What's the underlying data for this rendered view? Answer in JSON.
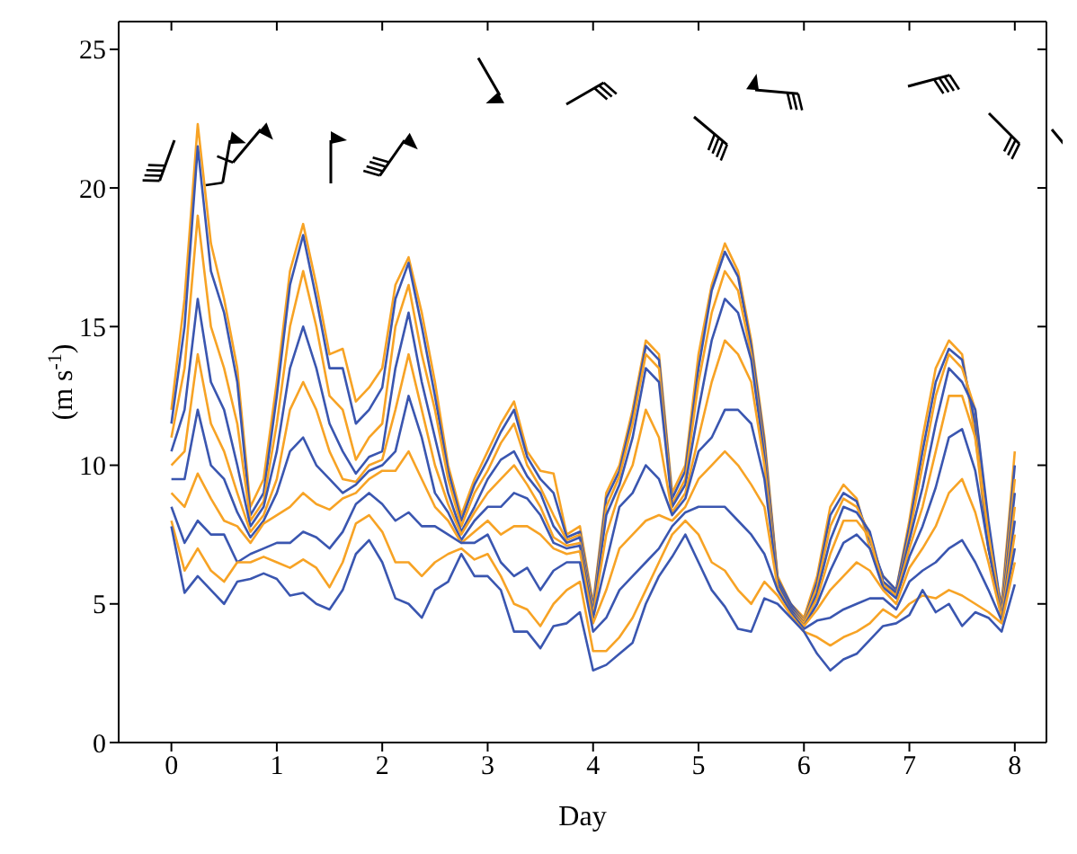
{
  "chart_data": {
    "type": "line",
    "xlabel": "Day",
    "ylabel": "(m s$^{-1}$)",
    "x": [
      0,
      0.125,
      0.25,
      0.375,
      0.5,
      0.625,
      0.75,
      0.875,
      1,
      1.125,
      1.25,
      1.375,
      1.5,
      1.625,
      1.75,
      1.875,
      2,
      2.125,
      2.25,
      2.375,
      2.5,
      2.625,
      2.75,
      2.875,
      3,
      3.125,
      3.25,
      3.375,
      3.5,
      3.625,
      3.75,
      3.875,
      4,
      4.125,
      4.25,
      4.375,
      4.5,
      4.625,
      4.75,
      4.875,
      5,
      5.125,
      5.25,
      5.375,
      5.5,
      5.625,
      5.75,
      5.875,
      6,
      6.125,
      6.25,
      6.375,
      6.5,
      6.625,
      6.75,
      6.875,
      7,
      7.125,
      7.25,
      7.375,
      7.5,
      7.625,
      7.75,
      7.875,
      8
    ],
    "series": [
      {
        "color": "#f7a325",
        "values": [
          12,
          16,
          22.3,
          18,
          16,
          13.5,
          8.5,
          9.5,
          13,
          17,
          18.7,
          16.5,
          14,
          14.2,
          12.3,
          12.8,
          13.5,
          16.5,
          17.5,
          15.5,
          13,
          10,
          8.2,
          9.5,
          10.5,
          11.5,
          12.3,
          10.5,
          9.8,
          9.7,
          7.5,
          7.8,
          5,
          9,
          10,
          12,
          14.5,
          14,
          9,
          10,
          14,
          16.5,
          18,
          17,
          14.5,
          11,
          6,
          5,
          4.5,
          6,
          8.5,
          9.3,
          8.8,
          7,
          6,
          5.5,
          8,
          11,
          13.5,
          14.5,
          14,
          11,
          7,
          5,
          10.5
        ]
      },
      {
        "color": "#3a56b0",
        "values": [
          11.5,
          15,
          21.5,
          17,
          15.5,
          13,
          8.2,
          9,
          12.5,
          16.5,
          18.3,
          16,
          13.5,
          13.5,
          11.5,
          12,
          12.8,
          16,
          17.3,
          15,
          12.5,
          9.8,
          8,
          9.3,
          10.2,
          11.2,
          12,
          10.3,
          9.5,
          9,
          7.4,
          7.6,
          4.9,
          8.8,
          9.8,
          11.8,
          14.3,
          13.8,
          8.8,
          9.8,
          13.5,
          16.3,
          17.7,
          16.8,
          14.3,
          10.8,
          5.9,
          5,
          4.4,
          5.8,
          8.2,
          9,
          8.7,
          7.3,
          6,
          5.5,
          7.8,
          10.5,
          13,
          14.2,
          13.8,
          11.5,
          7,
          4.9,
          10
        ]
      },
      {
        "color": "#f7a325",
        "values": [
          11,
          13.5,
          19,
          15,
          13.5,
          11.5,
          8,
          8.7,
          11.5,
          15,
          17,
          15,
          12.5,
          12,
          10.2,
          11,
          11.5,
          15,
          16.5,
          14,
          12,
          9.5,
          7.8,
          9,
          9.8,
          10.8,
          11.5,
          10,
          9.2,
          8.2,
          7.3,
          7.5,
          4.8,
          8.5,
          9.6,
          11.5,
          14,
          13.5,
          8.6,
          9.5,
          13,
          15.5,
          17,
          16.3,
          14,
          10.5,
          5.8,
          4.9,
          4.4,
          5.6,
          7.8,
          8.8,
          8.5,
          7.5,
          5.8,
          5.4,
          7.5,
          10,
          12.5,
          14,
          13.5,
          12,
          7.5,
          4.8,
          9.5
        ]
      },
      {
        "color": "#3a56b0",
        "values": [
          10.5,
          12,
          16,
          13,
          12,
          10,
          7.8,
          8.5,
          10.5,
          13.5,
          15,
          13.5,
          11.5,
          10.5,
          9.7,
          10.3,
          10.5,
          13.5,
          15.5,
          13,
          11,
          9,
          7.6,
          8.5,
          9.5,
          10.2,
          10.5,
          9.6,
          9,
          7.8,
          7.2,
          7.4,
          4.7,
          8.2,
          9.3,
          11,
          13.5,
          13,
          8.5,
          9.3,
          12,
          14.5,
          16,
          15.5,
          13.8,
          10.3,
          5.8,
          4.9,
          4.3,
          5.4,
          7.3,
          8.5,
          8.3,
          7.6,
          5.8,
          5.4,
          7.3,
          9.2,
          11.5,
          13.5,
          13,
          12,
          8,
          4.7,
          9
        ]
      },
      {
        "color": "#f7a325",
        "values": [
          10,
          10.5,
          14,
          11.5,
          10.5,
          9,
          7.6,
          8.2,
          9.5,
          12,
          13,
          12,
          10.5,
          9.5,
          9.4,
          10,
          10.2,
          12,
          14,
          12,
          10,
          8.6,
          7.5,
          8.3,
          9,
          9.5,
          10,
          9.3,
          8.5,
          7.4,
          7.1,
          7.2,
          4.6,
          7.5,
          9,
          10,
          12,
          11,
          8.3,
          9,
          11,
          13,
          14.5,
          14,
          13,
          10,
          5.7,
          4.8,
          4.3,
          5.2,
          6.8,
          8,
          8,
          7.4,
          5.7,
          5.3,
          7,
          8.5,
          10.5,
          12.5,
          12.5,
          11,
          7.5,
          4.6,
          8.5
        ]
      },
      {
        "color": "#3a56b0",
        "values": [
          9.5,
          9.5,
          12,
          10,
          9.5,
          8.3,
          7.4,
          8,
          9,
          10.5,
          11,
          10,
          9.5,
          9,
          9.3,
          9.8,
          10,
          10.5,
          12.5,
          11,
          9,
          8.3,
          7.3,
          8,
          8.5,
          8.5,
          9,
          8.8,
          8.2,
          7.2,
          7,
          7.1,
          4.5,
          6.5,
          8.5,
          9,
          10,
          9.5,
          8.2,
          8.8,
          10.5,
          11,
          12,
          12,
          11.5,
          9.5,
          5.7,
          4.8,
          4.2,
          5,
          6.2,
          7.2,
          7.5,
          7,
          5.6,
          5.2,
          6.7,
          7.8,
          9.2,
          11,
          11.3,
          9.8,
          7,
          4.5,
          8
        ]
      },
      {
        "color": "#f7a325",
        "values": [
          9,
          8.5,
          9.7,
          8.8,
          8,
          7.8,
          7.2,
          7.9,
          8.2,
          8.5,
          9,
          8.6,
          8.4,
          8.8,
          9,
          9.5,
          9.8,
          9.8,
          10.5,
          9.5,
          8.5,
          8,
          7.2,
          7.6,
          8,
          7.5,
          7.8,
          7.8,
          7.5,
          7,
          6.8,
          6.9,
          4.3,
          5.5,
          7,
          7.5,
          8,
          8.2,
          8,
          8.5,
          9.5,
          10,
          10.5,
          10,
          9.3,
          8.5,
          5.6,
          4.7,
          4.2,
          4.8,
          5.5,
          6,
          6.5,
          6.2,
          5.5,
          5,
          6.3,
          7,
          7.8,
          9,
          9.5,
          8.3,
          6.5,
          4.5,
          7.5
        ]
      },
      {
        "color": "#3a56b0",
        "values": [
          8.5,
          7.2,
          8,
          7.5,
          7.5,
          6.5,
          6.8,
          7,
          7.2,
          7.2,
          7.6,
          7.4,
          7,
          7.6,
          8.6,
          9,
          8.6,
          8,
          8.3,
          7.8,
          7.8,
          7.5,
          7.2,
          7.2,
          7.5,
          6.5,
          6,
          6.3,
          5.5,
          6.2,
          6.5,
          6.5,
          4,
          4.5,
          5.5,
          6,
          6.5,
          7,
          7.8,
          8.3,
          8.5,
          8.5,
          8.5,
          8,
          7.5,
          6.8,
          5.5,
          4.7,
          4.1,
          4.4,
          4.5,
          4.8,
          5,
          5.2,
          5.2,
          4.8,
          5.8,
          6.2,
          6.5,
          7,
          7.3,
          6.5,
          5.5,
          4.4,
          7
        ]
      },
      {
        "color": "#f7a325",
        "values": [
          8,
          6.2,
          7,
          6.2,
          5.8,
          6.5,
          6.5,
          6.7,
          6.5,
          6.3,
          6.6,
          6.3,
          5.6,
          6.5,
          7.9,
          8.2,
          7.6,
          6.5,
          6.5,
          6,
          6.5,
          6.8,
          7,
          6.6,
          6.8,
          6,
          5,
          4.8,
          4.2,
          5,
          5.5,
          5.8,
          3.3,
          3.3,
          3.8,
          4.5,
          5.5,
          6.5,
          7.5,
          8,
          7.5,
          6.5,
          6.2,
          5.5,
          5,
          5.8,
          5.3,
          4.6,
          4,
          3.8,
          3.5,
          3.8,
          4,
          4.3,
          4.8,
          4.5,
          5,
          5.3,
          5.2,
          5.5,
          5.3,
          5,
          4.7,
          4.3,
          6.5
        ]
      },
      {
        "color": "#3a56b0",
        "values": [
          7.8,
          5.4,
          6,
          5.5,
          5,
          5.8,
          5.9,
          6.1,
          5.9,
          5.3,
          5.4,
          5,
          4.8,
          5.5,
          6.8,
          7.3,
          6.5,
          5.2,
          5,
          4.5,
          5.5,
          5.8,
          6.8,
          6,
          6,
          5.5,
          4,
          4,
          3.4,
          4.2,
          4.3,
          4.7,
          2.6,
          2.8,
          3.2,
          3.6,
          5,
          6,
          6.7,
          7.5,
          6.5,
          5.5,
          4.9,
          4.1,
          4,
          5.2,
          5,
          4.5,
          4,
          3.2,
          2.6,
          3,
          3.2,
          3.7,
          4.2,
          4.3,
          4.6,
          5.5,
          4.7,
          5,
          4.2,
          4.7,
          4.5,
          4,
          5.7
        ]
      }
    ],
    "xlim": [
      -0.5,
      8.3
    ],
    "xticks": [
      0,
      1,
      2,
      3,
      4,
      5,
      6,
      7,
      8
    ],
    "ylim": [
      0,
      26
    ],
    "yticks": [
      0,
      5,
      10,
      15,
      20,
      25
    ],
    "grid": false,
    "legend": false,
    "marker": "none",
    "line_style": "solid"
  }
}
